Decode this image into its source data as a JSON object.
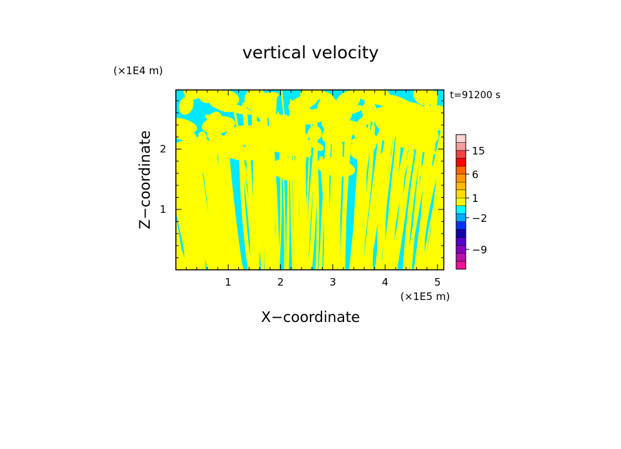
{
  "chart_data": {
    "type": "heatmap",
    "title": "vertical velocity",
    "time_label": "t=91200 s",
    "xlabel": "X−coordinate",
    "ylabel": "Z−coordinate",
    "x_unit": "(×1E5 m)",
    "y_unit": "(×1E4 m)",
    "xlim": [
      0,
      5.12
    ],
    "ylim": [
      0,
      2.98
    ],
    "x_ticks": [
      {
        "value": 1,
        "label": "1"
      },
      {
        "value": 2,
        "label": "2"
      },
      {
        "value": 3,
        "label": "3"
      },
      {
        "value": 4,
        "label": "4"
      },
      {
        "value": 5,
        "label": "5"
      }
    ],
    "y_ticks": [
      {
        "value": 1,
        "label": "1"
      },
      {
        "value": 2,
        "label": "2"
      }
    ],
    "field_colors": {
      "positive": "#ffff00",
      "negative": "#00e8ff"
    },
    "colorbar": {
      "bands": [
        {
          "color": "#ee1199"
        },
        {
          "color": "#bb11aa"
        },
        {
          "color": "#8800bb"
        },
        {
          "color": "#5500cc"
        },
        {
          "color": "#1100aa"
        },
        {
          "color": "#0033ff"
        },
        {
          "color": "#00aaff"
        },
        {
          "color": "#00ffff"
        },
        {
          "color": "#ffff00"
        },
        {
          "color": "#ffdd00"
        },
        {
          "color": "#ffbb00"
        },
        {
          "color": "#ff9900"
        },
        {
          "color": "#ff6600"
        },
        {
          "color": "#ff0000"
        },
        {
          "color": "#ee4444"
        },
        {
          "color": "#f4a0a0"
        },
        {
          "color": "#fad4d0"
        }
      ],
      "labels": [
        {
          "label": "15",
          "band": 15
        },
        {
          "label": "6",
          "band": 12
        },
        {
          "label": "1",
          "band": 9
        },
        {
          "label": "−2",
          "band": 6.5
        },
        {
          "label": "−9",
          "band": 2.5
        }
      ]
    }
  }
}
